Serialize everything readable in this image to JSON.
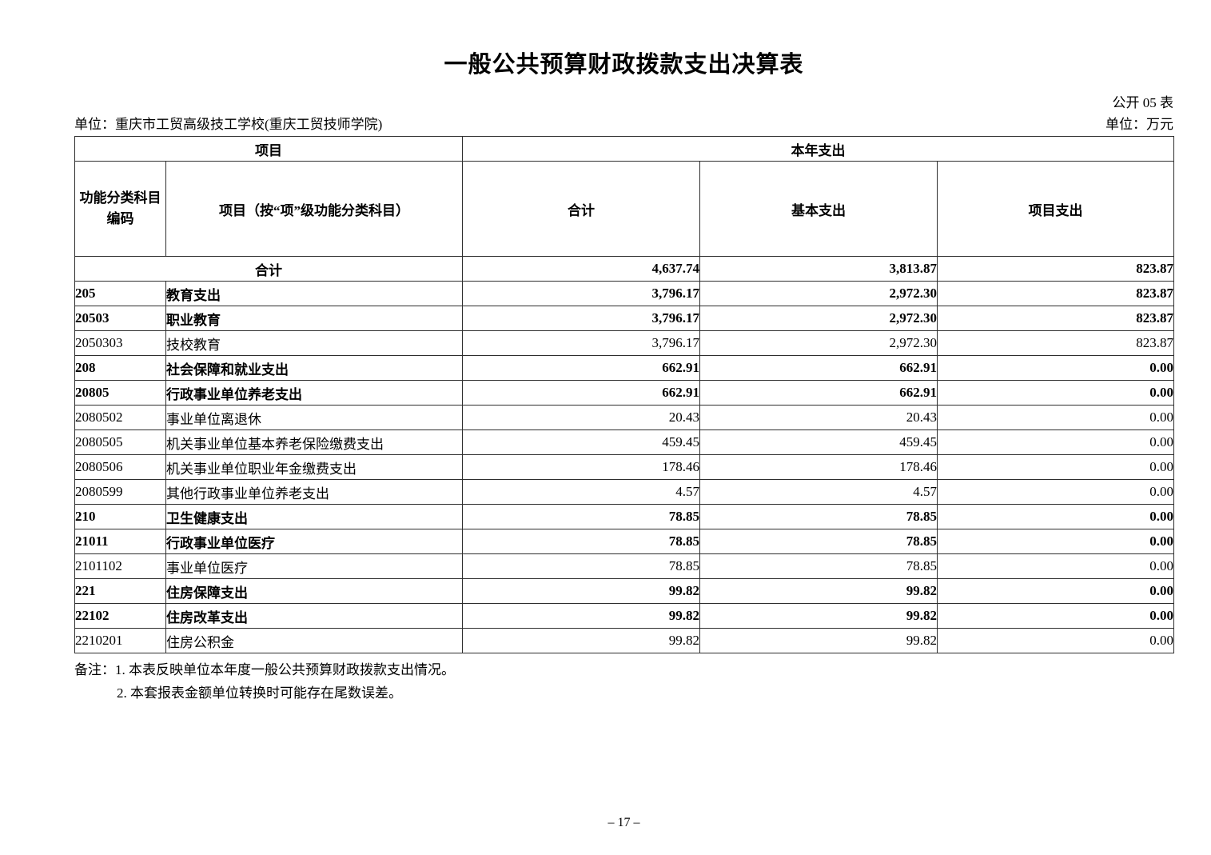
{
  "page": {
    "title": "一般公共预算财政拨款支出决算表",
    "sheet_label": "公开 05 表",
    "org_unit": "单位：重庆市工贸高级技工学校(重庆工贸技师学院)",
    "money_unit": "单位：万元",
    "page_number": "– 17 –"
  },
  "table": {
    "header": {
      "group_left": "项目",
      "group_right": "本年支出",
      "col_code_line1": "功能分类科目",
      "col_code_line2": "编码",
      "col_item": "项目（按“项”级功能分类科目）",
      "col_total": "合计",
      "col_basic": "基本支出",
      "col_project": "项目支出"
    },
    "rows": [
      {
        "code": "",
        "item": "合计",
        "total": "4,637.74",
        "basic": "3,813.87",
        "project": "823.87",
        "bold": true,
        "merged": true
      },
      {
        "code": "205",
        "item": "教育支出",
        "total": "3,796.17",
        "basic": "2,972.30",
        "project": "823.87",
        "bold": true,
        "merged": false
      },
      {
        "code": "20503",
        "item": "职业教育",
        "total": "3,796.17",
        "basic": "2,972.30",
        "project": "823.87",
        "bold": true,
        "merged": false
      },
      {
        "code": "2050303",
        "item": "技校教育",
        "total": "3,796.17",
        "basic": "2,972.30",
        "project": "823.87",
        "bold": false,
        "merged": false
      },
      {
        "code": "208",
        "item": "社会保障和就业支出",
        "total": "662.91",
        "basic": "662.91",
        "project": "0.00",
        "bold": true,
        "merged": false
      },
      {
        "code": "20805",
        "item": "行政事业单位养老支出",
        "total": "662.91",
        "basic": "662.91",
        "project": "0.00",
        "bold": true,
        "merged": false
      },
      {
        "code": "2080502",
        "item": "事业单位离退休",
        "total": "20.43",
        "basic": "20.43",
        "project": "0.00",
        "bold": false,
        "merged": false
      },
      {
        "code": "2080505",
        "item": "机关事业单位基本养老保险缴费支出",
        "total": "459.45",
        "basic": "459.45",
        "project": "0.00",
        "bold": false,
        "merged": false
      },
      {
        "code": "2080506",
        "item": "机关事业单位职业年金缴费支出",
        "total": "178.46",
        "basic": "178.46",
        "project": "0.00",
        "bold": false,
        "merged": false
      },
      {
        "code": "2080599",
        "item": "其他行政事业单位养老支出",
        "total": "4.57",
        "basic": "4.57",
        "project": "0.00",
        "bold": false,
        "merged": false
      },
      {
        "code": "210",
        "item": "卫生健康支出",
        "total": "78.85",
        "basic": "78.85",
        "project": "0.00",
        "bold": true,
        "merged": false
      },
      {
        "code": "21011",
        "item": "行政事业单位医疗",
        "total": "78.85",
        "basic": "78.85",
        "project": "0.00",
        "bold": true,
        "merged": false
      },
      {
        "code": "2101102",
        "item": "事业单位医疗",
        "total": "78.85",
        "basic": "78.85",
        "project": "0.00",
        "bold": false,
        "merged": false
      },
      {
        "code": "221",
        "item": "住房保障支出",
        "total": "99.82",
        "basic": "99.82",
        "project": "0.00",
        "bold": true,
        "merged": false
      },
      {
        "code": "22102",
        "item": "住房改革支出",
        "total": "99.82",
        "basic": "99.82",
        "project": "0.00",
        "bold": true,
        "merged": false
      },
      {
        "code": "2210201",
        "item": "住房公积金",
        "total": "99.82",
        "basic": "99.82",
        "project": "0.00",
        "bold": false,
        "merged": false
      }
    ]
  },
  "notes": {
    "line1": "备注：1. 本表反映单位本年度一般公共预算财政拨款支出情况。",
    "line2": "2. 本套报表金额单位转换时可能存在尾数误差。"
  }
}
